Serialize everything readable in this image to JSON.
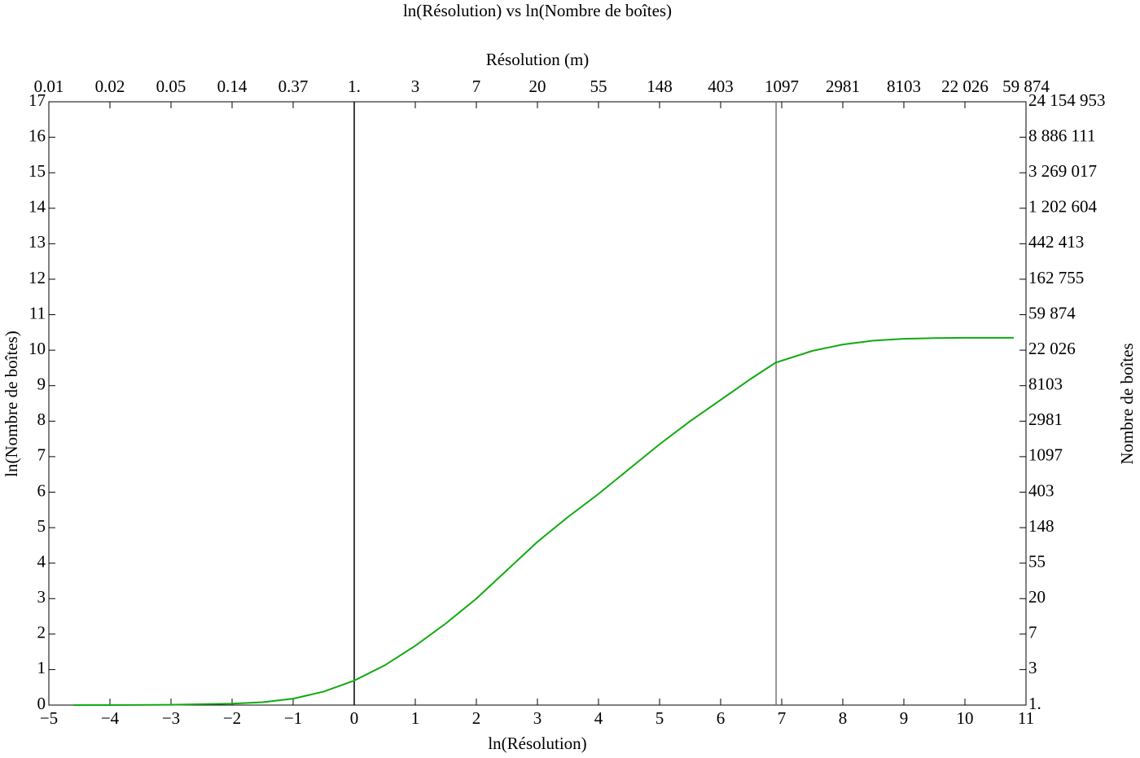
{
  "chart_data": {
    "type": "line",
    "title": "ln(Résolution) vs ln(Nombre de boîtes)",
    "xlabel": "ln(Résolution)",
    "ylabel": "ln(Nombre de boîtes)",
    "x2label": "Résolution (m)",
    "y2label": "Nombre de boîtes",
    "xlim": [
      -5,
      11
    ],
    "ylim": [
      0,
      17
    ],
    "xticks": [
      {
        "value": -5,
        "label": "−5"
      },
      {
        "value": -4,
        "label": "−4"
      },
      {
        "value": -3,
        "label": "−3"
      },
      {
        "value": -2,
        "label": "−2"
      },
      {
        "value": -1,
        "label": "−1"
      },
      0,
      1,
      2,
      3,
      4,
      5,
      6,
      7,
      8,
      9,
      10,
      11
    ],
    "yticks": [
      0,
      1,
      2,
      3,
      4,
      5,
      6,
      7,
      8,
      9,
      10,
      11,
      12,
      13,
      14,
      15,
      16,
      17
    ],
    "x2ticks": [
      {
        "value": -5,
        "label": "0.01"
      },
      {
        "value": -4,
        "label": "0.02"
      },
      {
        "value": -3,
        "label": "0.05"
      },
      {
        "value": -2,
        "label": "0.14"
      },
      {
        "value": -1,
        "label": "0.37"
      },
      {
        "value": 0,
        "label": "1."
      },
      {
        "value": 1,
        "label": "3"
      },
      {
        "value": 2,
        "label": "7"
      },
      {
        "value": 3,
        "label": "20"
      },
      {
        "value": 4,
        "label": "55"
      },
      {
        "value": 5,
        "label": "148"
      },
      {
        "value": 6,
        "label": "403"
      },
      {
        "value": 7,
        "label": "1097"
      },
      {
        "value": 8,
        "label": "2981"
      },
      {
        "value": 9,
        "label": "8103"
      },
      {
        "value": 10,
        "label": "22 026"
      },
      {
        "value": 11,
        "label": "59 874"
      }
    ],
    "y2ticks": [
      {
        "value": 0,
        "label": "1."
      },
      {
        "value": 1,
        "label": "3"
      },
      {
        "value": 2,
        "label": "7"
      },
      {
        "value": 3,
        "label": "20"
      },
      {
        "value": 4,
        "label": "55"
      },
      {
        "value": 5,
        "label": "148"
      },
      {
        "value": 6,
        "label": "403"
      },
      {
        "value": 7,
        "label": "1097"
      },
      {
        "value": 8,
        "label": "2981"
      },
      {
        "value": 9,
        "label": "8103"
      },
      {
        "value": 10,
        "label": "22 026"
      },
      {
        "value": 11,
        "label": "59 874"
      },
      {
        "value": 12,
        "label": "162 755"
      },
      {
        "value": 13,
        "label": "442 413"
      },
      {
        "value": 14,
        "label": "1 202 604"
      },
      {
        "value": 15,
        "label": "3 269 017"
      },
      {
        "value": 16,
        "label": "8 886 111"
      },
      {
        "value": 17,
        "label": "24 154 953"
      }
    ],
    "vlines": [
      {
        "value": 0,
        "color": "#000000"
      },
      {
        "value": 6.908,
        "color": "#777777"
      }
    ],
    "series": [
      {
        "color": "#10aa10",
        "x": [
          -4.6,
          -4,
          -3,
          -2,
          -1.5,
          -1,
          -0.5,
          0,
          0.5,
          1,
          1.5,
          2,
          2.5,
          3,
          3.5,
          4,
          4.5,
          5,
          5.5,
          6,
          6.5,
          6.9,
          7.5,
          8,
          8.5,
          9,
          9.5,
          10,
          10.8
        ],
        "values": [
          0,
          0,
          0.01,
          0.04,
          0.08,
          0.18,
          0.38,
          0.69,
          1.12,
          1.67,
          2.3,
          3.0,
          3.8,
          4.6,
          5.3,
          5.95,
          6.65,
          7.35,
          8.0,
          8.6,
          9.2,
          9.65,
          9.98,
          10.16,
          10.27,
          10.32,
          10.34,
          10.35,
          10.35
        ]
      }
    ]
  }
}
